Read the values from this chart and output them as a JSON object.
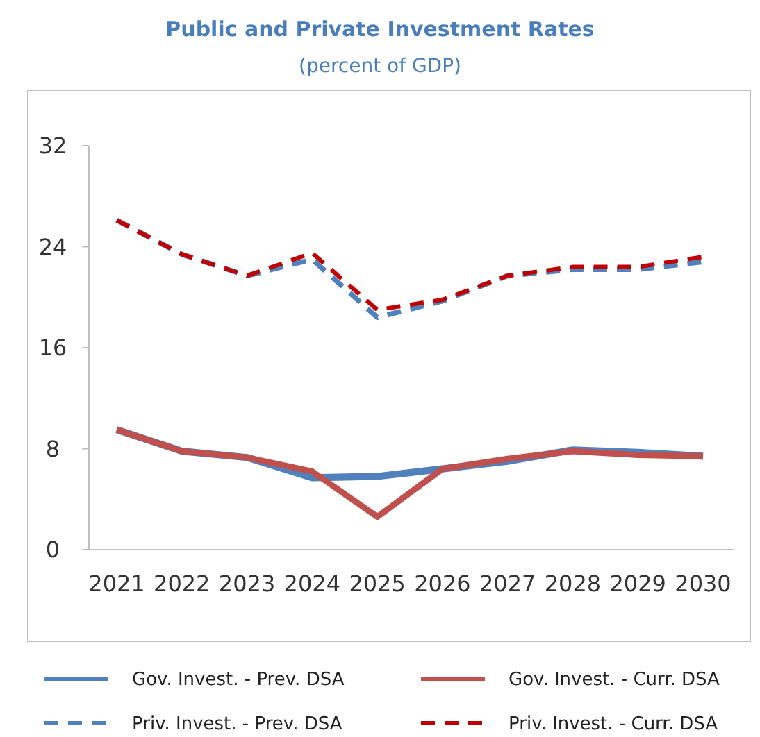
{
  "chart_data": {
    "type": "line",
    "title": "Public and Private Investment Rates",
    "subtitle": "(percent of GDP)",
    "categories": [
      "2021",
      "2022",
      "2023",
      "2024",
      "2025",
      "2026",
      "2027",
      "2028",
      "2029",
      "2030"
    ],
    "series": [
      {
        "name": "Gov. Invest. - Prev. DSA",
        "color": "#4f81bd",
        "line_style": "solid",
        "values": [
          9.5,
          7.8,
          7.3,
          5.7,
          5.8,
          6.4,
          7.0,
          7.9,
          7.7,
          7.4
        ]
      },
      {
        "name": "Gov. Invest. - Curr. DSA",
        "color": "#c0504d",
        "line_style": "solid",
        "values": [
          9.5,
          7.8,
          7.3,
          6.2,
          2.6,
          6.4,
          7.2,
          7.8,
          7.5,
          7.4
        ]
      },
      {
        "name": "Priv. Invest. - Prev. DSA",
        "color": "#4f81bd",
        "line_style": "dashed",
        "values": [
          26.1,
          23.4,
          21.7,
          23.0,
          18.4,
          19.7,
          21.7,
          22.2,
          22.2,
          22.8
        ]
      },
      {
        "name": "Priv. Invest. - Curr. DSA",
        "color": "#c00000",
        "line_style": "dashed",
        "values": [
          26.1,
          23.4,
          21.7,
          23.5,
          19.0,
          19.8,
          21.7,
          22.4,
          22.4,
          23.2
        ]
      }
    ],
    "ylim": [
      0,
      32
    ],
    "yticks": [
      0,
      8,
      16,
      24,
      32
    ],
    "grid": false,
    "legend": "bottom",
    "marker": "none"
  }
}
